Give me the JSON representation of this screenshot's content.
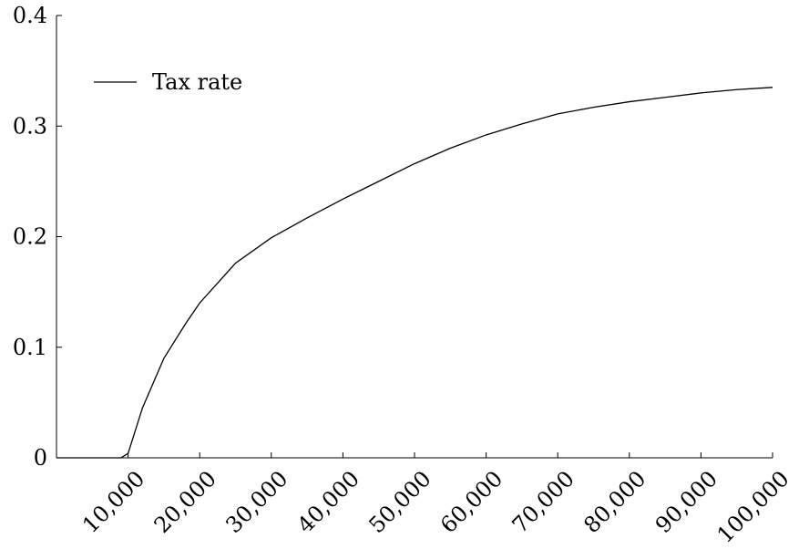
{
  "chart_data": {
    "type": "line",
    "xlim": [
      0,
      100000
    ],
    "ylim": [
      0,
      0.4
    ],
    "x_ticks": [
      10000,
      20000,
      30000,
      40000,
      50000,
      60000,
      70000,
      80000,
      90000,
      100000
    ],
    "x_tick_labels": [
      "10,000",
      "20,000",
      "30,000",
      "40,000",
      "50,000",
      "60,000",
      "70,000",
      "80,000",
      "90,000",
      "100,000"
    ],
    "y_ticks": [
      0,
      0.1,
      0.2,
      0.3,
      0.4
    ],
    "y_tick_labels": [
      "0",
      "0.1",
      "0.2",
      "0.3",
      "0.4"
    ],
    "legend_position": "top-left",
    "grid": false,
    "series": [
      {
        "name": "Tax rate",
        "color": "#000000",
        "x": [
          0,
          9000,
          10000,
          12000,
          15000,
          18000,
          20000,
          25000,
          30000,
          35000,
          40000,
          45000,
          50000,
          55000,
          60000,
          65000,
          70000,
          75000,
          80000,
          85000,
          90000,
          95000,
          100000
        ],
        "y": [
          0,
          0,
          0.004,
          0.045,
          0.09,
          0.121,
          0.14,
          0.176,
          0.199,
          0.217,
          0.234,
          0.25,
          0.266,
          0.28,
          0.292,
          0.302,
          0.311,
          0.317,
          0.322,
          0.326,
          0.33,
          0.333,
          0.335
        ]
      }
    ]
  }
}
